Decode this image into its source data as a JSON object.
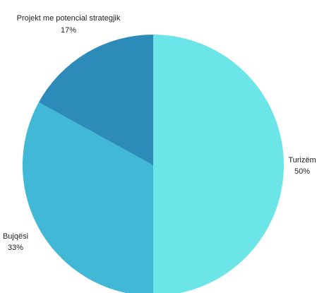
{
  "chart_data": {
    "type": "pie",
    "slices": [
      {
        "label": "Turizëm",
        "value": 50,
        "percent_label": "50%",
        "color": "#6CE5E8"
      },
      {
        "label": "Bujqësi",
        "value": 33,
        "percent_label": "33%",
        "color": "#41B8D5"
      },
      {
        "label": "Projekt me potencial strategjik",
        "value": 17,
        "percent_label": "17%",
        "color": "#2D8BBA"
      }
    ],
    "start_angle": "12 o'clock",
    "direction": "clockwise",
    "legend": "none",
    "title": ""
  }
}
